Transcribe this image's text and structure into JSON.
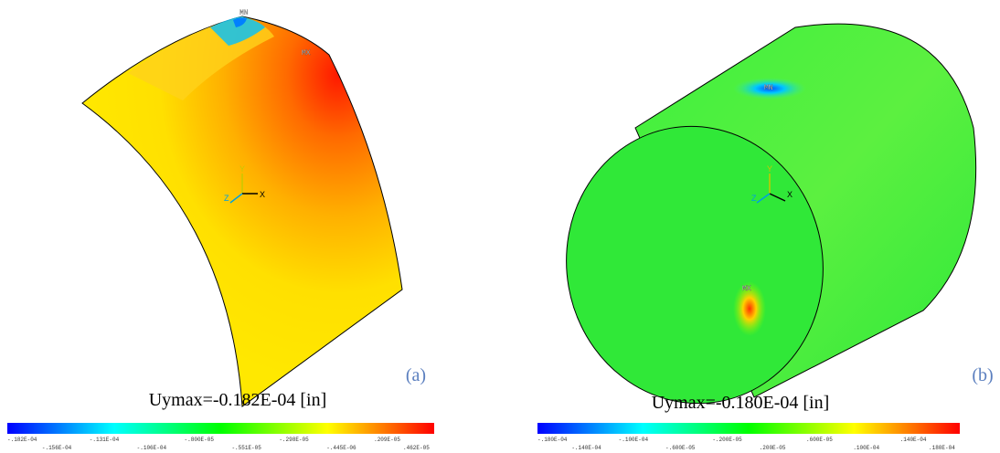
{
  "panels": [
    {
      "label": "(a)",
      "caption": "Uymax=-0.182E-04 [in]",
      "min_marker": "MN",
      "max_marker": "MX",
      "axes": [
        "Y",
        "Z",
        "X"
      ],
      "legend": [
        "-.182E-04",
        "-.156E-04",
        "-.131E-04",
        "-.106E-04",
        "-.800E-05",
        "-.551E-05",
        "-.298E-05",
        "-.445E-06",
        ".209E-05",
        ".462E-05"
      ]
    },
    {
      "label": "(b)",
      "caption": "Uymax=-0.180E-04 [in]",
      "min_marker": "MN",
      "max_marker": "MX",
      "axes": [
        "Y",
        "Z",
        "X"
      ],
      "legend": [
        "-.180E-04",
        "-.140E-04",
        "-.100E-04",
        "-.600E-05",
        "-.200E-05",
        ".200E-05",
        ".600E-05",
        ".100E-04",
        ".140E-04",
        ".180E-04"
      ]
    }
  ]
}
